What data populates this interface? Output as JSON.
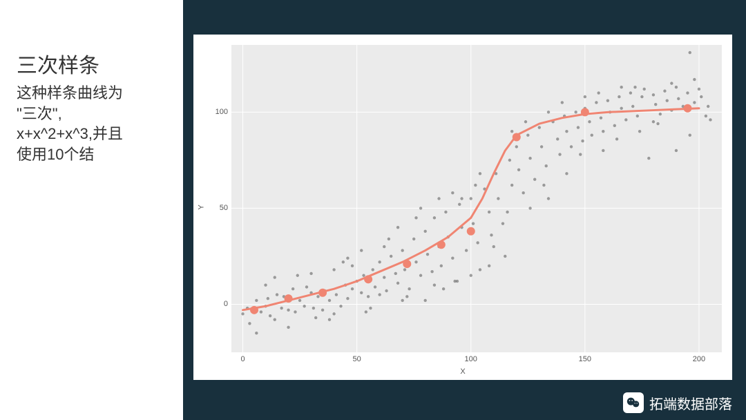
{
  "text": {
    "title": "三次样条",
    "line1": "这种样条曲线为",
    "line2": "\"三次\",",
    "line3": "x+x^2+x^3,并且",
    "line4": "使用10个结"
  },
  "footer": {
    "brand": "拓端数据部落"
  },
  "chart": {
    "type": "scatter-with-spline",
    "background_color": "#ebebeb",
    "grid_color": "#ffffff",
    "xlabel": "X",
    "ylabel": "Y",
    "label_fontsize": 11,
    "tick_fontsize": 11,
    "xlim": [
      -5,
      210
    ],
    "ylim": [
      -25,
      135
    ],
    "xticks": [
      0,
      50,
      100,
      150,
      200
    ],
    "yticks": [
      0,
      50,
      100
    ],
    "scatter": {
      "color": "#555555",
      "opacity": 0.55,
      "radius": 2.2,
      "points": [
        [
          0,
          -5
        ],
        [
          2,
          -2
        ],
        [
          3,
          -10
        ],
        [
          5,
          -3
        ],
        [
          6,
          2
        ],
        [
          8,
          -4
        ],
        [
          10,
          -1
        ],
        [
          11,
          3
        ],
        [
          12,
          -6
        ],
        [
          14,
          -8
        ],
        [
          15,
          5
        ],
        [
          17,
          -2
        ],
        [
          18,
          4
        ],
        [
          20,
          -3
        ],
        [
          22,
          8
        ],
        [
          23,
          -4
        ],
        [
          25,
          2
        ],
        [
          27,
          -1
        ],
        [
          28,
          9
        ],
        [
          30,
          6
        ],
        [
          31,
          -2
        ],
        [
          33,
          4
        ],
        [
          35,
          -3
        ],
        [
          36,
          7
        ],
        [
          38,
          2
        ],
        [
          40,
          18
        ],
        [
          41,
          5
        ],
        [
          43,
          -1
        ],
        [
          45,
          10
        ],
        [
          46,
          3
        ],
        [
          48,
          8
        ],
        [
          50,
          12
        ],
        [
          52,
          6
        ],
        [
          53,
          15
        ],
        [
          55,
          4
        ],
        [
          57,
          18
        ],
        [
          58,
          9
        ],
        [
          60,
          22
        ],
        [
          62,
          14
        ],
        [
          63,
          7
        ],
        [
          65,
          25
        ],
        [
          67,
          16
        ],
        [
          68,
          11
        ],
        [
          70,
          28
        ],
        [
          71,
          18
        ],
        [
          73,
          8
        ],
        [
          75,
          34
        ],
        [
          76,
          22
        ],
        [
          78,
          15
        ],
        [
          80,
          38
        ],
        [
          81,
          26
        ],
        [
          83,
          17
        ],
        [
          84,
          45
        ],
        [
          86,
          30
        ],
        [
          87,
          20
        ],
        [
          89,
          48
        ],
        [
          90,
          35
        ],
        [
          92,
          24
        ],
        [
          93,
          12
        ],
        [
          95,
          52
        ],
        [
          96,
          40
        ],
        [
          98,
          28
        ],
        [
          100,
          55
        ],
        [
          101,
          42
        ],
        [
          103,
          32
        ],
        [
          104,
          18
        ],
        [
          106,
          60
        ],
        [
          108,
          48
        ],
        [
          109,
          36
        ],
        [
          111,
          68
        ],
        [
          112,
          55
        ],
        [
          114,
          42
        ],
        [
          115,
          25
        ],
        [
          117,
          75
        ],
        [
          118,
          62
        ],
        [
          120,
          82
        ],
        [
          121,
          70
        ],
        [
          123,
          58
        ],
        [
          125,
          88
        ],
        [
          126,
          76
        ],
        [
          128,
          65
        ],
        [
          130,
          92
        ],
        [
          131,
          82
        ],
        [
          133,
          72
        ],
        [
          134,
          55
        ],
        [
          136,
          95
        ],
        [
          138,
          86
        ],
        [
          139,
          78
        ],
        [
          141,
          98
        ],
        [
          142,
          90
        ],
        [
          144,
          82
        ],
        [
          146,
          100
        ],
        [
          147,
          92
        ],
        [
          149,
          85
        ],
        [
          150,
          102
        ],
        [
          152,
          95
        ],
        [
          153,
          88
        ],
        [
          155,
          105
        ],
        [
          157,
          97
        ],
        [
          158,
          90
        ],
        [
          160,
          106
        ],
        [
          161,
          100
        ],
        [
          163,
          93
        ],
        [
          165,
          108
        ],
        [
          166,
          102
        ],
        [
          168,
          96
        ],
        [
          170,
          110
        ],
        [
          171,
          103
        ],
        [
          173,
          98
        ],
        [
          175,
          108
        ],
        [
          176,
          112
        ],
        [
          178,
          76
        ],
        [
          180,
          109
        ],
        [
          181,
          104
        ],
        [
          183,
          99
        ],
        [
          185,
          111
        ],
        [
          186,
          106
        ],
        [
          188,
          101
        ],
        [
          190,
          113
        ],
        [
          191,
          107
        ],
        [
          193,
          103
        ],
        [
          195,
          110
        ],
        [
          196,
          131
        ],
        [
          198,
          105
        ],
        [
          200,
          112
        ],
        [
          201,
          108
        ],
        [
          203,
          98
        ],
        [
          6,
          -15
        ],
        [
          14,
          14
        ],
        [
          24,
          15
        ],
        [
          32,
          -7
        ],
        [
          40,
          -5
        ],
        [
          48,
          20
        ],
        [
          56,
          -2
        ],
        [
          64,
          34
        ],
        [
          72,
          4
        ],
        [
          80,
          2
        ],
        [
          88,
          8
        ],
        [
          96,
          55
        ],
        [
          104,
          68
        ],
        [
          44,
          22
        ],
        [
          52,
          28
        ],
        [
          60,
          5
        ],
        [
          68,
          40
        ],
        [
          76,
          45
        ],
        [
          84,
          10
        ],
        [
          92,
          58
        ],
        [
          100,
          15
        ],
        [
          108,
          20
        ],
        [
          116,
          48
        ],
        [
          124,
          95
        ],
        [
          132,
          62
        ],
        [
          140,
          105
        ],
        [
          148,
          78
        ],
        [
          156,
          110
        ],
        [
          164,
          86
        ],
        [
          172,
          113
        ],
        [
          180,
          95
        ],
        [
          188,
          115
        ],
        [
          196,
          88
        ],
        [
          204,
          103
        ],
        [
          10,
          10
        ],
        [
          20,
          -12
        ],
        [
          30,
          16
        ],
        [
          38,
          -8
        ],
        [
          46,
          24
        ],
        [
          54,
          -4
        ],
        [
          62,
          30
        ],
        [
          70,
          2
        ],
        [
          78,
          50
        ],
        [
          86,
          55
        ],
        [
          94,
          12
        ],
        [
          102,
          62
        ],
        [
          110,
          30
        ],
        [
          118,
          90
        ],
        [
          126,
          50
        ],
        [
          134,
          100
        ],
        [
          142,
          68
        ],
        [
          150,
          108
        ],
        [
          158,
          80
        ],
        [
          166,
          113
        ],
        [
          174,
          90
        ],
        [
          182,
          94
        ],
        [
          190,
          80
        ],
        [
          198,
          117
        ],
        [
          205,
          96
        ]
      ]
    },
    "spline": {
      "color": "#f08572",
      "width": 3,
      "points": [
        [
          0,
          -3
        ],
        [
          10,
          -1
        ],
        [
          20,
          2
        ],
        [
          30,
          5
        ],
        [
          40,
          8
        ],
        [
          50,
          12
        ],
        [
          60,
          17
        ],
        [
          70,
          22
        ],
        [
          80,
          28
        ],
        [
          90,
          35
        ],
        [
          100,
          45
        ],
        [
          105,
          55
        ],
        [
          110,
          68
        ],
        [
          115,
          80
        ],
        [
          120,
          88
        ],
        [
          130,
          94
        ],
        [
          140,
          97
        ],
        [
          150,
          99
        ],
        [
          160,
          100
        ],
        [
          170,
          100.5
        ],
        [
          180,
          101
        ],
        [
          190,
          101.5
        ],
        [
          200,
          102
        ]
      ]
    },
    "knots": {
      "color": "#f08572",
      "radius": 6,
      "points": [
        [
          5,
          -3
        ],
        [
          20,
          3
        ],
        [
          35,
          6
        ],
        [
          55,
          13
        ],
        [
          72,
          21
        ],
        [
          87,
          31
        ],
        [
          100,
          38
        ],
        [
          120,
          87
        ],
        [
          150,
          100
        ],
        [
          195,
          102
        ]
      ]
    }
  },
  "colors": {
    "page_bg": "#18303d",
    "panel_bg": "#ffffff",
    "text": "#333333"
  }
}
